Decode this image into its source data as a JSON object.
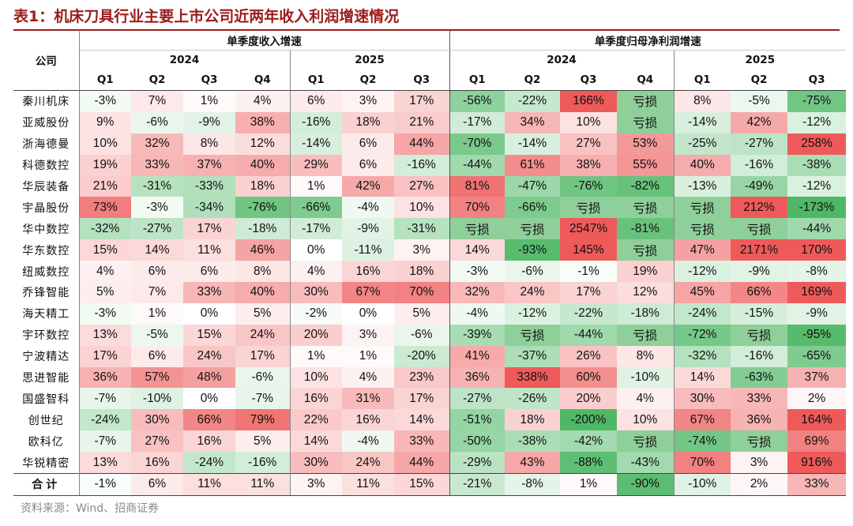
{
  "title": "表1：机床刀具行业主要上市公司近两年收入利润增速情况",
  "source": "资料来源：Wind、招商证券",
  "colors": {
    "title": "#9b1c1c",
    "loss_cell": "#8fcf9a",
    "positive_scale": "#ee5a5a",
    "negative_scale": "#4fb866"
  },
  "header": {
    "company_label": "公司",
    "groups": [
      {
        "label": "单季度收入增速",
        "years": [
          {
            "year": "2024",
            "quarters": [
              "Q1",
              "Q2",
              "Q3",
              "Q4"
            ]
          },
          {
            "year": "2025",
            "quarters": [
              "Q1",
              "Q2",
              "Q3"
            ]
          }
        ]
      },
      {
        "label": "单季度归母净利润增速",
        "years": [
          {
            "year": "2024",
            "quarters": [
              "Q1",
              "Q2",
              "Q3",
              "Q4"
            ]
          },
          {
            "year": "2025",
            "quarters": [
              "Q1",
              "Q2",
              "Q3"
            ]
          }
        ]
      }
    ]
  },
  "rows": [
    {
      "name": "秦川机床",
      "revenue": [
        "-3%",
        "7%",
        "1%",
        "4%",
        "6%",
        "3%",
        "17%"
      ],
      "profit": [
        "-56%",
        "-22%",
        "166%",
        "亏损",
        "8%",
        "-5%",
        "-75%"
      ]
    },
    {
      "name": "亚威股份",
      "revenue": [
        "9%",
        "-6%",
        "-9%",
        "38%",
        "-16%",
        "18%",
        "21%"
      ],
      "profit": [
        "-17%",
        "34%",
        "10%",
        "亏损",
        "-14%",
        "42%",
        "-12%"
      ]
    },
    {
      "name": "浙海德曼",
      "revenue": [
        "10%",
        "32%",
        "8%",
        "12%",
        "-14%",
        "6%",
        "44%"
      ],
      "profit": [
        "-70%",
        "-14%",
        "27%",
        "53%",
        "-25%",
        "-27%",
        "258%"
      ]
    },
    {
      "name": "科德数控",
      "revenue": [
        "19%",
        "33%",
        "37%",
        "40%",
        "29%",
        "6%",
        "-16%"
      ],
      "profit": [
        "-44%",
        "61%",
        "38%",
        "55%",
        "40%",
        "-16%",
        "-38%"
      ]
    },
    {
      "name": "华辰装备",
      "revenue": [
        "21%",
        "-31%",
        "-33%",
        "18%",
        "1%",
        "42%",
        "27%"
      ],
      "profit": [
        "81%",
        "-47%",
        "-76%",
        "-82%",
        "-13%",
        "-49%",
        "-12%"
      ]
    },
    {
      "name": "宇晶股份",
      "revenue": [
        "73%",
        "-3%",
        "-34%",
        "-76%",
        "-66%",
        "-4%",
        "10%"
      ],
      "profit": [
        "70%",
        "-66%",
        "亏损",
        "亏损",
        "亏损",
        "212%",
        "-173%"
      ]
    },
    {
      "name": "华中数控",
      "revenue": [
        "-32%",
        "-27%",
        "17%",
        "-18%",
        "-17%",
        "-9%",
        "-31%"
      ],
      "profit": [
        "亏损",
        "亏损",
        "2547%",
        "-81%",
        "亏损",
        "亏损",
        "-44%"
      ]
    },
    {
      "name": "华东数控",
      "revenue": [
        "15%",
        "14%",
        "11%",
        "46%",
        "0%",
        "-11%",
        "3%"
      ],
      "profit": [
        "14%",
        "-93%",
        "145%",
        "亏损",
        "47%",
        "2171%",
        "170%"
      ]
    },
    {
      "name": "纽威数控",
      "revenue": [
        "4%",
        "6%",
        "6%",
        "8%",
        "4%",
        "16%",
        "18%"
      ],
      "profit": [
        "-3%",
        "-6%",
        "-1%",
        "19%",
        "-12%",
        "-9%",
        "-8%"
      ]
    },
    {
      "name": "乔锋智能",
      "revenue": [
        "5%",
        "7%",
        "33%",
        "40%",
        "30%",
        "67%",
        "70%"
      ],
      "profit": [
        "32%",
        "24%",
        "17%",
        "12%",
        "45%",
        "66%",
        "169%"
      ]
    },
    {
      "name": "海天精工",
      "revenue": [
        "-3%",
        "1%",
        "0%",
        "5%",
        "-2%",
        "0%",
        "5%"
      ],
      "profit": [
        "-4%",
        "-12%",
        "-22%",
        "-18%",
        "-24%",
        "-15%",
        "-9%"
      ]
    },
    {
      "name": "宇环数控",
      "revenue": [
        "13%",
        "-5%",
        "15%",
        "24%",
        "20%",
        "3%",
        "-6%"
      ],
      "profit": [
        "-39%",
        "亏损",
        "-44%",
        "亏损",
        "-72%",
        "亏损",
        "-95%"
      ]
    },
    {
      "name": "宁波精达",
      "revenue": [
        "17%",
        "6%",
        "24%",
        "17%",
        "1%",
        "1%",
        "-20%"
      ],
      "profit": [
        "41%",
        "-37%",
        "26%",
        "8%",
        "-32%",
        "-16%",
        "-65%"
      ]
    },
    {
      "name": "思进智能",
      "revenue": [
        "36%",
        "57%",
        "48%",
        "-6%",
        "10%",
        "4%",
        "23%"
      ],
      "profit": [
        "36%",
        "338%",
        "60%",
        "-10%",
        "14%",
        "-63%",
        "37%"
      ]
    },
    {
      "name": "国盛智科",
      "revenue": [
        "-7%",
        "-10%",
        "0%",
        "-7%",
        "16%",
        "31%",
        "17%"
      ],
      "profit": [
        "-27%",
        "-26%",
        "20%",
        "4%",
        "30%",
        "33%",
        "2%"
      ]
    },
    {
      "name": "创世纪",
      "revenue": [
        "-24%",
        "30%",
        "66%",
        "79%",
        "22%",
        "16%",
        "14%"
      ],
      "profit": [
        "-51%",
        "18%",
        "-200%",
        "10%",
        "67%",
        "36%",
        "164%"
      ]
    },
    {
      "name": "欧科亿",
      "revenue": [
        "-7%",
        "27%",
        "16%",
        "5%",
        "14%",
        "-4%",
        "33%"
      ],
      "profit": [
        "-50%",
        "-38%",
        "-42%",
        "亏损",
        "-74%",
        "亏损",
        "69%"
      ]
    },
    {
      "name": "华锐精密",
      "revenue": [
        "13%",
        "16%",
        "-24%",
        "-16%",
        "30%",
        "24%",
        "44%"
      ],
      "profit": [
        "-29%",
        "43%",
        "-88%",
        "-43%",
        "70%",
        "3%",
        "916%"
      ]
    }
  ],
  "total": {
    "name": "合计",
    "revenue": [
      "-1%",
      "6%",
      "11%",
      "11%",
      "3%",
      "11%",
      "15%"
    ],
    "profit": [
      "-21%",
      "-8%",
      "1%",
      "-90%",
      "-10%",
      "2%",
      "33%"
    ]
  }
}
